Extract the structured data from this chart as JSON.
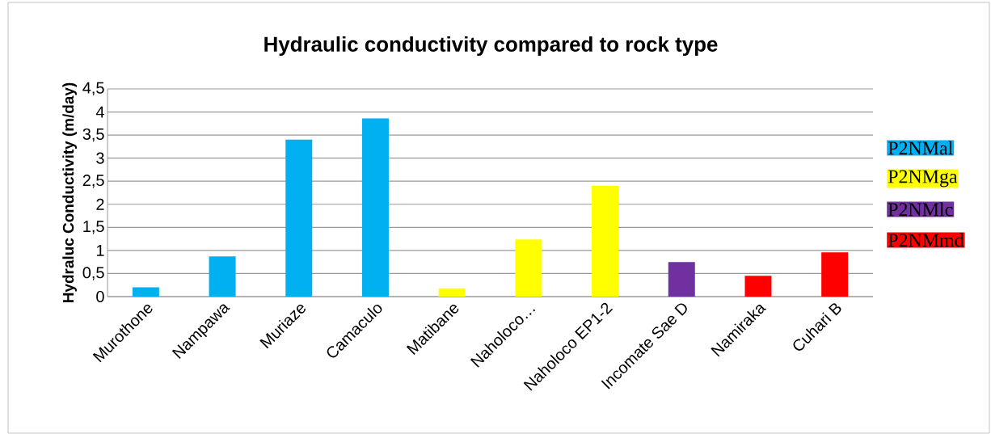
{
  "chart_data": {
    "type": "bar",
    "title": "Hydraulic conductivity  compared to rock type",
    "ylabel": "Hydraluc Conductivity (m/day)",
    "categories": [
      "Murothone",
      "Nampawa",
      "Muriaze",
      "Camaculo",
      "Matibane",
      "Naholoco…",
      "Naholoco EP1-2",
      "Incomate Sae D",
      "Namiraka",
      "Cuhari B"
    ],
    "series": [
      {
        "name": "P2NMal",
        "color": "#00b0f0",
        "values": [
          0.2,
          0.87,
          3.4,
          3.86,
          null,
          null,
          null,
          null,
          null,
          null
        ]
      },
      {
        "name": "P2NMga",
        "color": "#ffff00",
        "values": [
          null,
          null,
          null,
          null,
          0.18,
          1.24,
          2.4,
          null,
          null,
          null
        ]
      },
      {
        "name": "P2NMlc",
        "color": "#7030a0",
        "values": [
          null,
          null,
          null,
          null,
          null,
          null,
          null,
          0.75,
          null,
          null
        ]
      },
      {
        "name": "P2NMmd",
        "color": "#ff0000",
        "values": [
          null,
          null,
          null,
          null,
          null,
          null,
          null,
          null,
          0.45,
          0.96
        ]
      }
    ],
    "ylim": [
      0,
      4.5
    ],
    "yticks": [
      0,
      {
        "value": 0.5,
        "label": "0,5"
      },
      1,
      {
        "value": 1.5,
        "label": "1,5"
      },
      2,
      {
        "value": 2.5,
        "label": "2,5"
      },
      3,
      {
        "value": 3.5,
        "label": "3,5"
      },
      4,
      {
        "value": 4.5,
        "label": "4,5"
      }
    ],
    "grid": "y",
    "legend": "right"
  }
}
